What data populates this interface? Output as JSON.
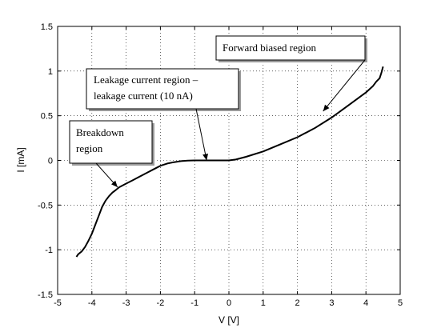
{
  "chart_data": {
    "type": "line",
    "xlabel": "V [V]",
    "ylabel": "I  [mA]",
    "xlim": [
      -5,
      5
    ],
    "ylim": [
      -1.5,
      1.5
    ],
    "xticks": [
      -5,
      -4,
      -3,
      -2,
      -1,
      0,
      1,
      2,
      3,
      4,
      5
    ],
    "xtick_labels": [
      "-5",
      "-4",
      "-3",
      "-2",
      "-1",
      "0",
      "1",
      "2",
      "3",
      "4",
      "5"
    ],
    "yticks": [
      -1.5,
      -1,
      -0.5,
      0,
      0.5,
      1,
      1.5
    ],
    "ytick_labels": [
      "-1.5",
      "-1",
      "-0.5",
      "0",
      "0.5",
      "1",
      "1.5"
    ],
    "grid": "dotted",
    "series": [
      {
        "color": "#000000",
        "x": [
          -4.45,
          -4.4,
          -4.3,
          -4.2,
          -4.1,
          -4.0,
          -3.9,
          -3.8,
          -3.7,
          -3.6,
          -3.5,
          -3.4,
          -3.3,
          -3.2,
          -3.0,
          -2.8,
          -2.6,
          -2.4,
          -2.2,
          -2.0,
          -1.8,
          -1.6,
          -1.4,
          -1.2,
          -1.0,
          -0.8,
          -0.6,
          -0.4,
          -0.2,
          0.0,
          0.2,
          0.5,
          1.0,
          1.5,
          2.0,
          2.5,
          3.0,
          3.5,
          4.0,
          4.2,
          4.3,
          4.4,
          4.45,
          4.5
        ],
        "y": [
          -1.08,
          -1.05,
          -1.02,
          -0.97,
          -0.9,
          -0.82,
          -0.72,
          -0.62,
          -0.52,
          -0.45,
          -0.4,
          -0.36,
          -0.33,
          -0.3,
          -0.26,
          -0.22,
          -0.18,
          -0.14,
          -0.1,
          -0.06,
          -0.035,
          -0.02,
          -0.008,
          -0.003,
          0.0,
          0.0,
          0.0,
          0.0,
          0.0,
          0.0,
          0.01,
          0.04,
          0.1,
          0.18,
          0.26,
          0.36,
          0.48,
          0.62,
          0.76,
          0.83,
          0.88,
          0.92,
          0.98,
          1.05
        ]
      }
    ],
    "annotations": [
      {
        "lines": [
          "Forward biased region"
        ],
        "point": [
          2.75,
          0.55
        ]
      },
      {
        "lines": [
          "Leakage current region –",
          "leakage current (10 nA)"
        ],
        "point": [
          -0.65,
          0.0
        ]
      },
      {
        "lines": [
          "Breakdown",
          "region"
        ],
        "point": [
          -3.25,
          -0.3
        ]
      }
    ]
  }
}
